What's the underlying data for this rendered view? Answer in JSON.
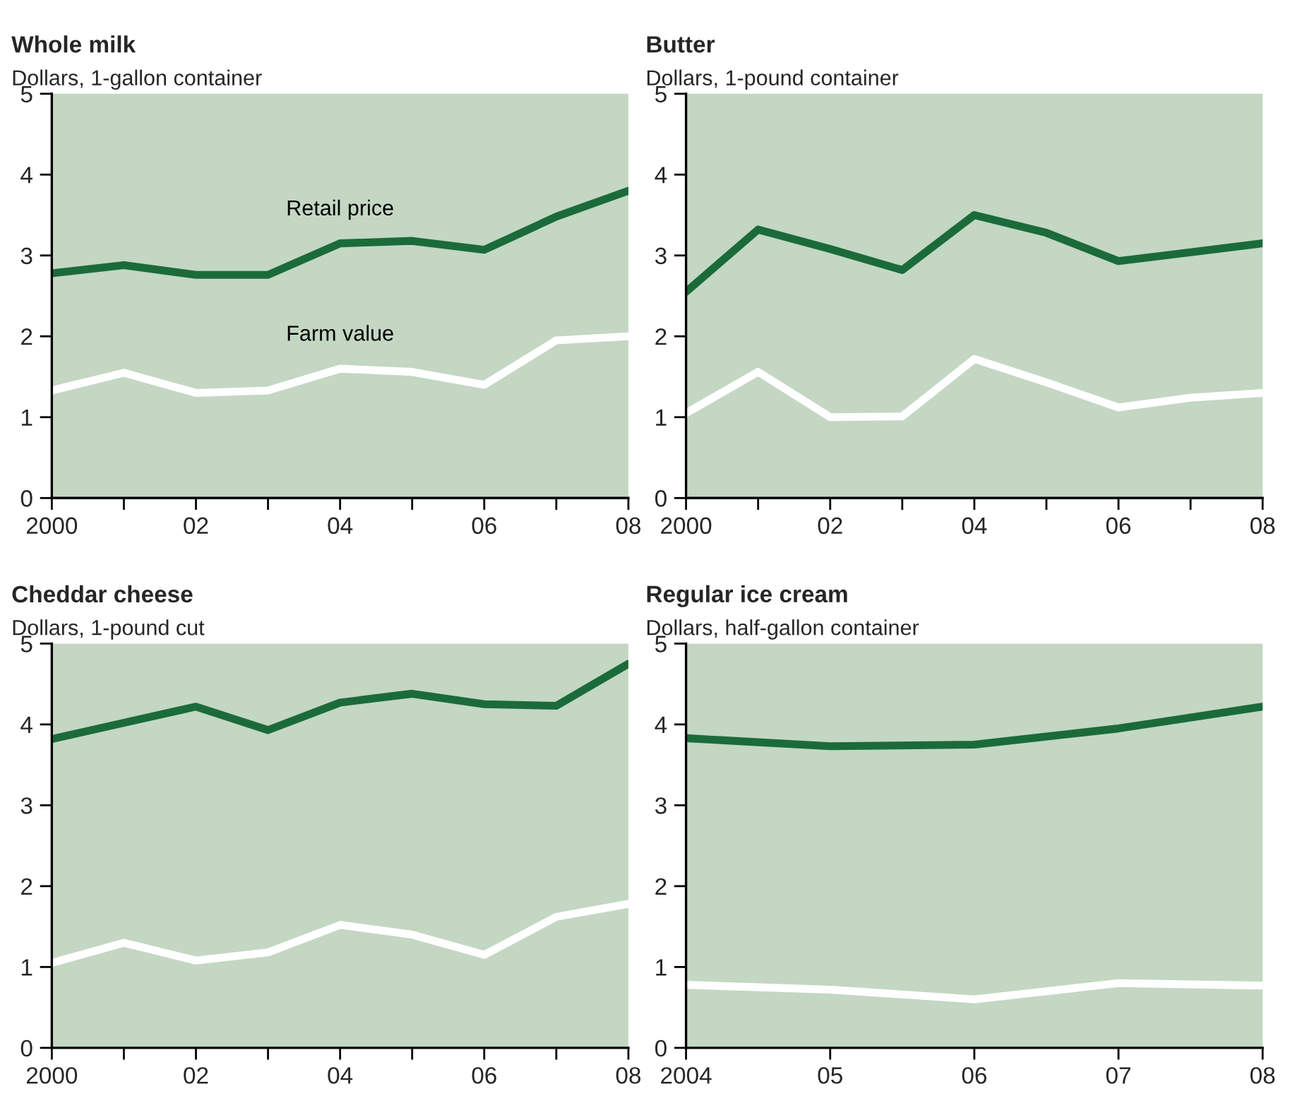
{
  "chart_data": [
    {
      "type": "line",
      "title": "Whole milk",
      "subtitle": "Dollars, 1-gallon container",
      "x": [
        2000,
        2001,
        2002,
        2003,
        2004,
        2005,
        2006,
        2007,
        2008
      ],
      "series": [
        {
          "name": "Retail price",
          "color": "#1b6b3a",
          "values": [
            2.78,
            2.88,
            2.76,
            2.76,
            3.15,
            3.18,
            3.07,
            3.48,
            3.8
          ]
        },
        {
          "name": "Farm value",
          "color": "#ffffff",
          "values": [
            1.33,
            1.55,
            1.3,
            1.33,
            1.6,
            1.56,
            1.4,
            1.95,
            2.0
          ]
        }
      ],
      "xlim": [
        2000,
        2008
      ],
      "xticks": [
        {
          "value": 2000,
          "label": "2000"
        },
        {
          "value": 2001,
          "label": null
        },
        {
          "value": 2002,
          "label": "02"
        },
        {
          "value": 2003,
          "label": null
        },
        {
          "value": 2004,
          "label": "04"
        },
        {
          "value": 2005,
          "label": null
        },
        {
          "value": 2006,
          "label": "06"
        },
        {
          "value": 2007,
          "label": null
        },
        {
          "value": 2008,
          "label": "08"
        }
      ],
      "ylim": [
        0,
        5
      ],
      "yticks": [
        0,
        1,
        2,
        3,
        4,
        5
      ],
      "grid": false,
      "legend": false,
      "marker": "none",
      "line_style": "solid"
    },
    {
      "type": "line",
      "title": "Butter",
      "subtitle": "Dollars, 1-pound container",
      "x": [
        2000,
        2001,
        2002,
        2003,
        2004,
        2005,
        2006,
        2007,
        2008
      ],
      "series": [
        {
          "color": "#1b6b3a",
          "values": [
            2.55,
            3.32,
            3.08,
            2.82,
            3.5,
            3.28,
            2.93,
            3.04,
            3.15
          ]
        },
        {
          "color": "#ffffff",
          "values": [
            1.05,
            1.56,
            1.0,
            1.01,
            1.72,
            1.43,
            1.12,
            1.24,
            1.3
          ]
        }
      ],
      "xlim": [
        2000,
        2008
      ],
      "xticks": [
        {
          "value": 2000,
          "label": "2000"
        },
        {
          "value": 2001,
          "label": null
        },
        {
          "value": 2002,
          "label": "02"
        },
        {
          "value": 2003,
          "label": null
        },
        {
          "value": 2004,
          "label": "04"
        },
        {
          "value": 2005,
          "label": null
        },
        {
          "value": 2006,
          "label": "06"
        },
        {
          "value": 2007,
          "label": null
        },
        {
          "value": 2008,
          "label": "08"
        }
      ],
      "ylim": [
        0,
        5
      ],
      "yticks": [
        0,
        1,
        2,
        3,
        4,
        5
      ],
      "grid": false,
      "legend": false,
      "marker": "none",
      "line_style": "solid"
    },
    {
      "type": "line",
      "title": "Cheddar cheese",
      "subtitle": "Dollars, 1-pound cut",
      "x": [
        2000,
        2001,
        2002,
        2003,
        2004,
        2005,
        2006,
        2007,
        2008
      ],
      "series": [
        {
          "color": "#1b6b3a",
          "values": [
            3.82,
            4.02,
            4.22,
            3.93,
            4.27,
            4.38,
            4.25,
            4.23,
            4.75
          ]
        },
        {
          "color": "#ffffff",
          "values": [
            1.05,
            1.3,
            1.08,
            1.18,
            1.52,
            1.4,
            1.15,
            1.62,
            1.78
          ]
        }
      ],
      "xlim": [
        2000,
        2008
      ],
      "xticks": [
        {
          "value": 2000,
          "label": "2000"
        },
        {
          "value": 2001,
          "label": null
        },
        {
          "value": 2002,
          "label": "02"
        },
        {
          "value": 2003,
          "label": null
        },
        {
          "value": 2004,
          "label": "04"
        },
        {
          "value": 2005,
          "label": null
        },
        {
          "value": 2006,
          "label": "06"
        },
        {
          "value": 2007,
          "label": null
        },
        {
          "value": 2008,
          "label": "08"
        }
      ],
      "ylim": [
        0,
        5
      ],
      "yticks": [
        0,
        1,
        2,
        3,
        4,
        5
      ],
      "grid": false,
      "legend": false,
      "marker": "none",
      "line_style": "solid"
    },
    {
      "type": "line",
      "title": "Regular ice cream",
      "subtitle": "Dollars, half-gallon container",
      "x": [
        2004,
        2005,
        2006,
        2007,
        2008
      ],
      "series": [
        {
          "color": "#1b6b3a",
          "values": [
            3.83,
            3.73,
            3.75,
            3.95,
            4.22
          ]
        },
        {
          "color": "#ffffff",
          "values": [
            0.78,
            0.72,
            0.6,
            0.8,
            0.77
          ]
        }
      ],
      "xlim": [
        2004,
        2008
      ],
      "xticks": [
        {
          "value": 2004,
          "label": "2004"
        },
        {
          "value": 2005,
          "label": "05"
        },
        {
          "value": 2006,
          "label": "06"
        },
        {
          "value": 2007,
          "label": "07"
        },
        {
          "value": 2008,
          "label": "08"
        }
      ],
      "ylim": [
        0,
        5
      ],
      "yticks": [
        0,
        1,
        2,
        3,
        4,
        5
      ],
      "grid": false,
      "legend": false,
      "marker": "none",
      "line_style": "solid"
    }
  ]
}
